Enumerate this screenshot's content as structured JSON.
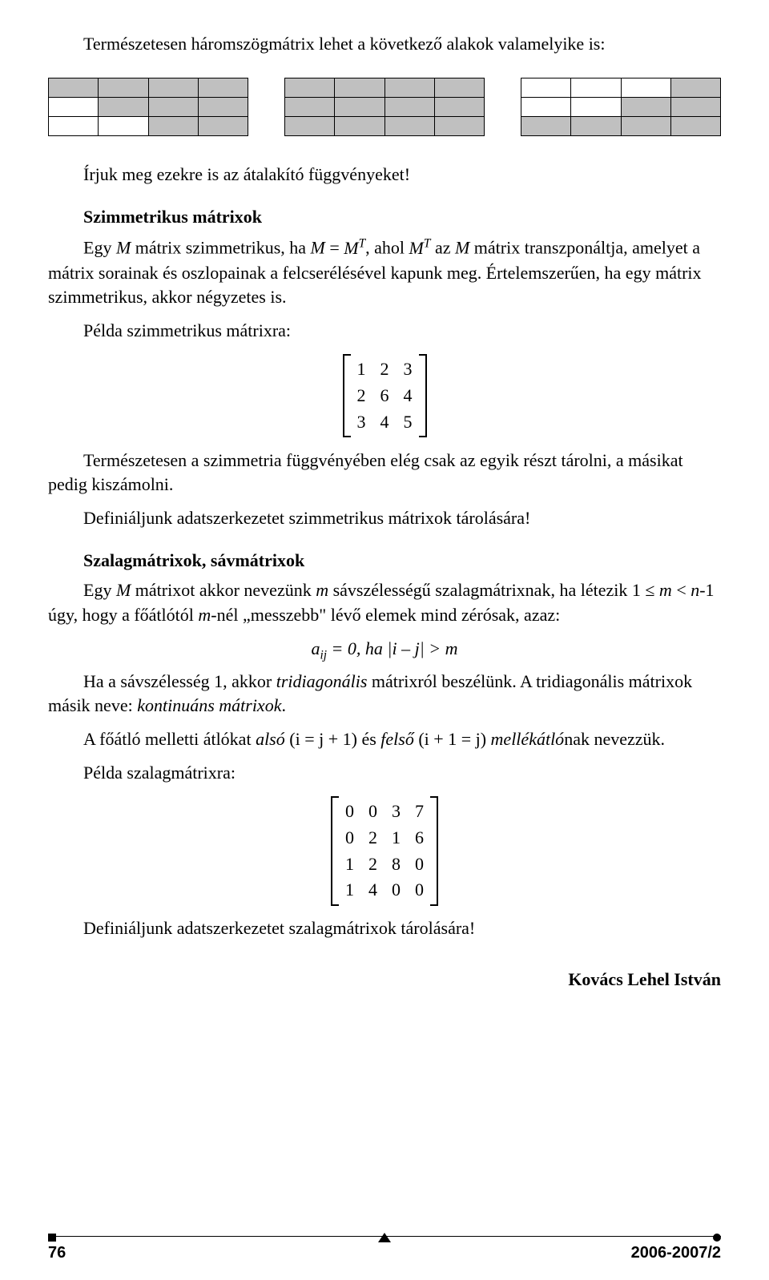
{
  "intro": "Természetesen háromszögmátrix lehet a következő alakok valamelyike is:",
  "tables": [
    {
      "rows": [
        [
          true,
          true,
          true,
          true
        ],
        [
          false,
          true,
          true,
          true
        ],
        [
          false,
          false,
          true,
          true
        ]
      ]
    },
    {
      "rows": [
        [
          true,
          true,
          true,
          true
        ],
        [
          true,
          true,
          true,
          true
        ],
        [
          true,
          true,
          true,
          true
        ]
      ]
    },
    {
      "rows": [
        [
          false,
          false,
          false,
          true
        ],
        [
          false,
          false,
          true,
          true
        ],
        [
          true,
          true,
          true,
          true
        ]
      ]
    }
  ],
  "after_tables": "Írjuk meg ezekre is az átalakító függvényeket!",
  "sym_title": "Szimmetrikus mátrixok",
  "sym_desc_html": "Egy <span class='italic'>M</span> mátrix szimmetrikus, ha <span class='italic'>M</span> = <span class='italic'>M<sup>T</sup></span>, ahol <span class='italic'>M<sup>T</sup></span> az <span class='italic'>M</span> mátrix transzponáltja, amelyet a mátrix sorainak és oszlopainak a felcserélésével kapunk meg. Értelemszerűen, ha egy mátrix szimmetrikus, akkor négyzetes is.",
  "sym_example_label": "Példa szimmetrikus mátrixra:",
  "sym_matrix": {
    "cols": 3,
    "data": [
      "1",
      "2",
      "3",
      "2",
      "6",
      "4",
      "3",
      "4",
      "5"
    ]
  },
  "sym_after": "Természetesen a szimmetria függvényében elég csak az egyik részt tárolni, a másikat pedig kiszámolni.",
  "sym_task": "Definiáljunk adatszerkezetet szimmetrikus mátrixok tárolására!",
  "band_title": "Szalagmátrixok, sávmátrixok",
  "band_desc_html": "Egy <span class='italic'>M</span> mátrixot akkor nevezünk <span class='italic'>m</span> sávszélességű szalagmátrixnak, ha létezik 1 ≤ <span class='italic'>m</span> &lt; <span class='italic'>n</span>-1 úgy, hogy a főátlótól <span class='italic'>m</span>-nél „messzebb\" lévő elemek mind zérósak, azaz:",
  "band_eq_html": "<span class='italic'>a<sub>ij</sub></span> = 0, ha |<span class='italic'>i</span> – <span class='italic'>j</span>| > <span class='italic'>m</span>",
  "band_tridiag_html": "Ha a sávszélesség 1, akkor <span class='italic'>tridiagonális</span> mátrixról beszélünk. A tridiagonális mátrixok másik neve: <span class='italic'>kontinuáns mátrixok</span>.",
  "band_minor_html": "A főátló melletti átlókat <span class='italic'>alsó</span> (i = j + 1) és <span class='italic'>felső</span> (i + 1 = j) <span class='italic'>mellékátló</span>nak nevezzük.",
  "band_example_label": "Példa szalagmátrixra:",
  "band_matrix": {
    "cols": 4,
    "data": [
      "0",
      "0",
      "3",
      "7",
      "0",
      "2",
      "1",
      "6",
      "1",
      "2",
      "8",
      "0",
      "1",
      "4",
      "0",
      "0"
    ]
  },
  "band_task": "Definiáljunk adatszerkezetet szalagmátrixok tárolására!",
  "author": "Kovács Lehel István",
  "footer": {
    "page": "76",
    "issue": "2006-2007/2"
  },
  "colors": {
    "shaded": "#c0c0c0",
    "border": "#000000",
    "text": "#000000",
    "bg": "#ffffff"
  }
}
